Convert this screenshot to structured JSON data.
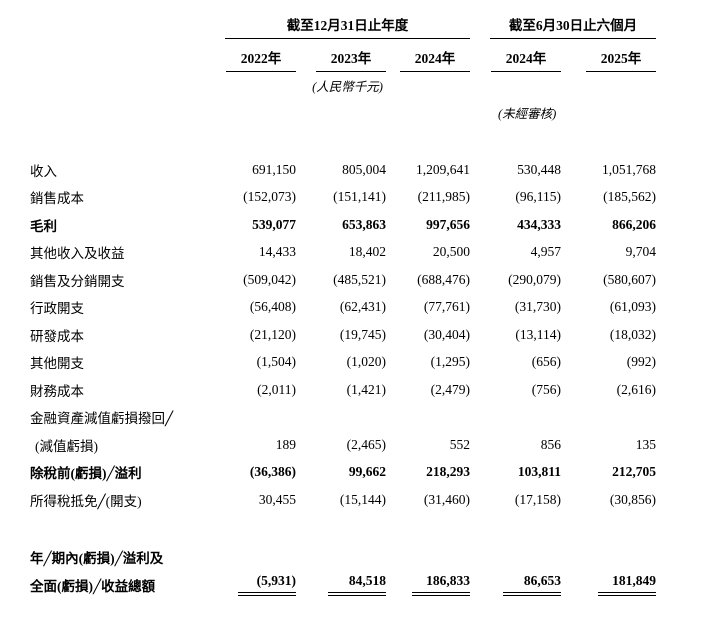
{
  "page": {
    "background": "#ffffff",
    "text_color": "#000000"
  },
  "header": {
    "group_annual": "截至12月31日止年度",
    "group_interim": "截至6月30日止六個月",
    "years": [
      "2022年",
      "2023年",
      "2024年",
      "2024年",
      "2025年"
    ],
    "currency_note": "(人民幣千元)",
    "unaudited_note": "(未經審核)"
  },
  "rows": [
    {
      "label": "收入",
      "values": [
        "691,150",
        "805,004",
        "1,209,641",
        "530,448",
        "1,051,768"
      ]
    },
    {
      "label": "銷售成本",
      "values": [
        "(152,073)",
        "(151,141)",
        "(211,985)",
        "(96,115)",
        "(185,562)"
      ]
    },
    {
      "label": "毛利",
      "bold": true,
      "values": [
        "539,077",
        "653,863",
        "997,656",
        "434,333",
        "866,206"
      ]
    },
    {
      "label": "其他收入及收益",
      "values": [
        "14,433",
        "18,402",
        "20,500",
        "4,957",
        "9,704"
      ]
    },
    {
      "label": "銷售及分銷開支",
      "values": [
        "(509,042)",
        "(485,521)",
        "(688,476)",
        "(290,079)",
        "(580,607)"
      ]
    },
    {
      "label": "行政開支",
      "values": [
        "(56,408)",
        "(62,431)",
        "(77,761)",
        "(31,730)",
        "(61,093)"
      ]
    },
    {
      "label": "研發成本",
      "values": [
        "(21,120)",
        "(19,745)",
        "(30,404)",
        "(13,114)",
        "(18,032)"
      ]
    },
    {
      "label": "其他開支",
      "values": [
        "(1,504)",
        "(1,020)",
        "(1,295)",
        "(656)",
        "(992)"
      ]
    },
    {
      "label": "財務成本",
      "values": [
        "(2,011)",
        "(1,421)",
        "(2,479)",
        "(756)",
        "(2,616)"
      ]
    },
    {
      "label_line1": "金融資產減值虧損撥回╱",
      "label_line2": "(減值虧損)",
      "values": [
        "189",
        "(2,465)",
        "552",
        "856",
        "135"
      ]
    },
    {
      "label": "除稅前(虧損)╱溢利",
      "bold": true,
      "values": [
        "(36,386)",
        "99,662",
        "218,293",
        "103,811",
        "212,705"
      ]
    },
    {
      "label": "所得稅抵免╱(開支)",
      "values": [
        "30,455",
        "(15,144)",
        "(31,460)",
        "(17,158)",
        "(30,856)"
      ]
    },
    {
      "label_line1": "年╱期內(虧損)╱溢利及",
      "label_line2": "全面(虧損)╱收益總額",
      "bold": true,
      "values": [
        "(5,931)",
        "84,518",
        "186,833",
        "86,653",
        "181,849"
      ]
    }
  ]
}
